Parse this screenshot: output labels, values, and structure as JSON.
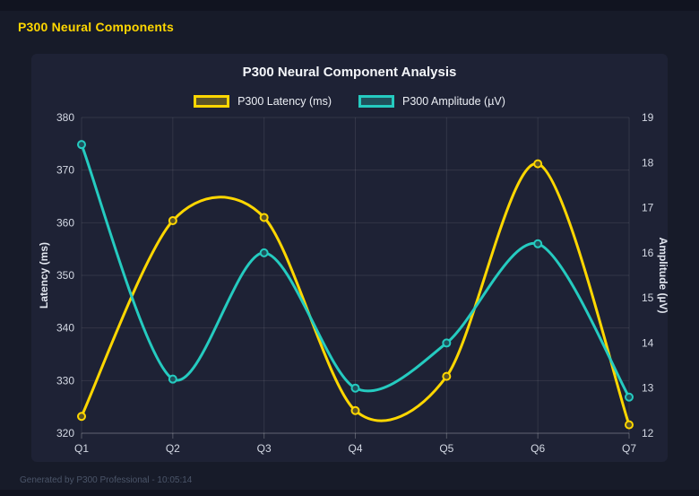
{
  "page": {
    "header": "P300 Neural Components",
    "footer": "Generated by P300 Professional - 10:05:14",
    "accent_color": "#FFD700",
    "background_color": "#171b29",
    "card_color": "#1e2235"
  },
  "chart_data": {
    "type": "line",
    "title": "P300 Neural Component Analysis",
    "categories": [
      "Q1",
      "Q2",
      "Q3",
      "Q4",
      "Q5",
      "Q6",
      "Q7"
    ],
    "series": [
      {
        "name": "P300 Latency (ms)",
        "axis": "left",
        "color": "#FFD700",
        "point_fill": "rgba(255,215,0,0.28)",
        "values": [
          323.2,
          360.4,
          361.0,
          324.3,
          330.8,
          371.2,
          321.6
        ]
      },
      {
        "name": "P300 Amplitude (µV)",
        "axis": "right",
        "color": "#25CBC0",
        "point_fill": "rgba(37,203,192,0.28)",
        "values": [
          18.4,
          13.2,
          16.0,
          13.0,
          14.0,
          16.2,
          12.8
        ]
      }
    ],
    "left_axis": {
      "label": "Latency (ms)",
      "min": 320,
      "max": 380,
      "ticks": [
        320,
        330,
        340,
        350,
        360,
        370,
        380
      ]
    },
    "right_axis": {
      "label": "Amplitude (µV)",
      "min": 12,
      "max": 19,
      "ticks": [
        12,
        13,
        14,
        15,
        16,
        17,
        18,
        19
      ]
    },
    "grid": true,
    "legend_position": "top",
    "line_tension": 0.15
  }
}
